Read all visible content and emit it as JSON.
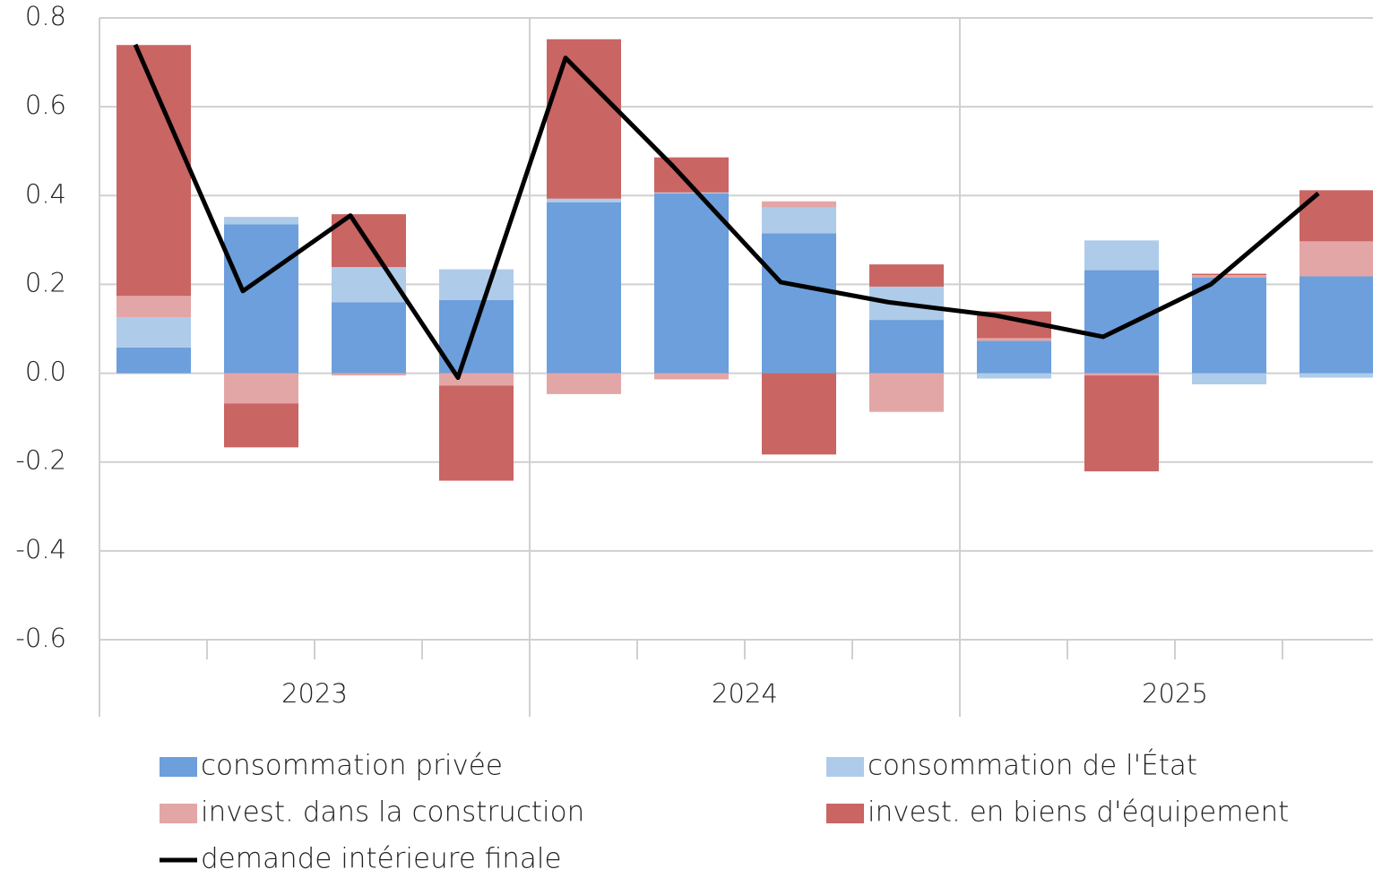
{
  "chart_data": {
    "type": "stacked-bar-line",
    "categories": [
      null,
      null,
      null,
      null,
      null,
      null,
      null,
      null,
      null,
      null,
      null,
      null
    ],
    "groups": [
      "2023",
      "2024",
      "2025"
    ],
    "series": [
      {
        "name": "consommation privée",
        "color": "#6c9fdb",
        "values": [
          0.058,
          0.335,
          0.16,
          0.165,
          0.385,
          0.405,
          0.315,
          0.12,
          0.073,
          0.232,
          0.215,
          0.218
        ]
      },
      {
        "name": "consommation de l'État",
        "color": "#aecbe9",
        "values": [
          0.068,
          0.017,
          0.079,
          0.069,
          0.008,
          0.002,
          0.058,
          0.075,
          -0.012,
          0.067,
          -0.025,
          -0.01
        ]
      },
      {
        "name": "invest. dans la construction",
        "color": "#e3a6a6",
        "values": [
          0.048,
          -0.068,
          -0.005,
          -0.028,
          -0.047,
          -0.014,
          0.014,
          -0.087,
          0.006,
          -0.005,
          0.006,
          0.079
        ]
      },
      {
        "name": "invest. en biens d'équipement",
        "color": "#c96563",
        "values": [
          0.565,
          -0.099,
          0.119,
          -0.214,
          0.359,
          0.079,
          -0.183,
          0.05,
          0.06,
          -0.216,
          0.003,
          0.115
        ]
      }
    ],
    "line": {
      "name": "demande intérieure finale",
      "color": "#000000",
      "values": [
        0.74,
        0.185,
        0.355,
        -0.01,
        0.71,
        0.466,
        0.205,
        0.16,
        0.13,
        0.082,
        0.2,
        0.405
      ]
    },
    "ylim": [
      -0.6,
      0.8
    ],
    "yticks": [
      0.8,
      0.6,
      0.4,
      0.2,
      {
        "value": 0,
        "label": "0.0"
      },
      -0.2,
      -0.4,
      -0.6
    ],
    "grid": true
  }
}
